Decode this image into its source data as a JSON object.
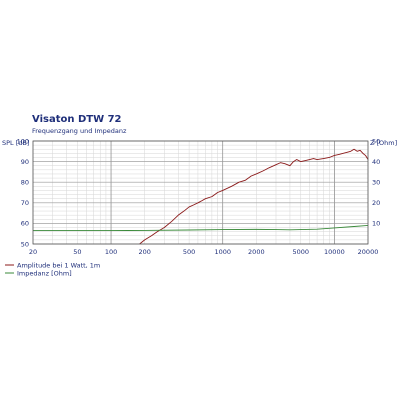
{
  "chart_data": {
    "type": "line",
    "title": "Visaton DTW 72",
    "subtitle": "Frequenzgang und Impedanz",
    "x_scale": "log",
    "xlim": [
      20,
      20000
    ],
    "x_ticks": [
      20,
      50,
      100,
      200,
      500,
      1000,
      2000,
      5000,
      10000,
      20000
    ],
    "ylabel_left": "SPL [dB]",
    "ylim_left": [
      50,
      100
    ],
    "y_ticks_left": [
      50,
      60,
      70,
      80,
      90,
      100
    ],
    "ylabel_right": "Z [Ohm]",
    "ylim_right": [
      0,
      50
    ],
    "y_ticks_right": [
      10,
      20,
      30,
      40,
      50
    ],
    "grid": true,
    "legend_position": "bottom-left",
    "series": [
      {
        "name": "Amplitude bei 1 Watt, 1m",
        "axis": "left",
        "color": "#8b1a1a",
        "x": [
          180,
          200,
          230,
          260,
          300,
          350,
          400,
          450,
          500,
          550,
          600,
          650,
          700,
          800,
          900,
          1000,
          1200,
          1400,
          1600,
          1800,
          2000,
          2300,
          2600,
          3000,
          3300,
          3600,
          4000,
          4300,
          4600,
          5000,
          5500,
          6000,
          6500,
          7000,
          8000,
          9000,
          10000,
          11000,
          12000,
          13000,
          14000,
          15000,
          16000,
          17000,
          18000,
          19000,
          20000
        ],
        "y": [
          50,
          52,
          54,
          56,
          58,
          61,
          64,
          66,
          68,
          69,
          70,
          71,
          72,
          73,
          75,
          76,
          78,
          80,
          81,
          83,
          84,
          85.5,
          87,
          88.5,
          89.5,
          89,
          88,
          90,
          91,
          90,
          90.5,
          91,
          91.5,
          91,
          91.5,
          92,
          93,
          93.5,
          94,
          94.5,
          95,
          96,
          95,
          95.5,
          94,
          93,
          91
        ]
      },
      {
        "name": "Impedanz [Ohm]",
        "axis": "right",
        "color": "#3a8a3a",
        "x": [
          20,
          100,
          200,
          500,
          1000,
          2000,
          3000,
          4000,
          5000,
          7000,
          10000,
          15000,
          20000
        ],
        "y": [
          6.5,
          6.5,
          6.6,
          6.8,
          7.0,
          7.1,
          7.0,
          6.9,
          7.0,
          7.2,
          7.8,
          8.5,
          9.0
        ]
      }
    ]
  }
}
